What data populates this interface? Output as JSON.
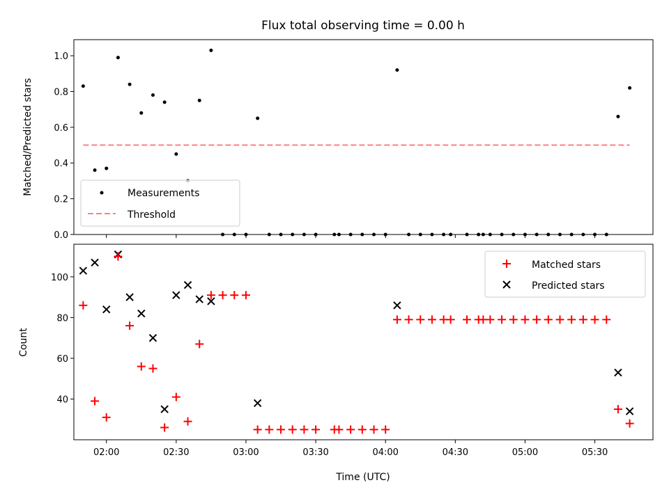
{
  "chart_data": [
    {
      "type": "scatter",
      "title": "Flux total observing time = 0.00 h",
      "xlabel": "",
      "ylabel": "Matched/Predicted stars",
      "xlim": [
        "01:46",
        "05:55"
      ],
      "ylim": [
        0.0,
        1.09
      ],
      "yticks": [
        0.0,
        0.2,
        0.4,
        0.6,
        0.8,
        1.0
      ],
      "ytick_labels": [
        "0.0",
        "0.2",
        "0.4",
        "0.6",
        "0.8",
        "1.0"
      ],
      "grid": false,
      "legend": "lower-left",
      "series": [
        {
          "name": "Measurements",
          "color": "#000000",
          "marker": "dot",
          "points": [
            [
              "01:50",
              0.83
            ],
            [
              "01:55",
              0.36
            ],
            [
              "02:00",
              0.37
            ],
            [
              "02:05",
              0.99
            ],
            [
              "02:10",
              0.84
            ],
            [
              "02:15",
              0.68
            ],
            [
              "02:20",
              0.78
            ],
            [
              "02:25",
              0.74
            ],
            [
              "02:30",
              0.45
            ],
            [
              "02:35",
              0.3
            ],
            [
              "02:40",
              0.75
            ],
            [
              "02:45",
              1.03
            ],
            [
              "02:50",
              0.0
            ],
            [
              "02:55",
              0.0
            ],
            [
              "03:00",
              0.0
            ],
            [
              "03:05",
              0.65
            ],
            [
              "03:10",
              0.0
            ],
            [
              "03:15",
              0.0
            ],
            [
              "03:20",
              0.0
            ],
            [
              "03:25",
              0.0
            ],
            [
              "03:30",
              0.0
            ],
            [
              "03:38",
              0.0
            ],
            [
              "03:40",
              0.0
            ],
            [
              "03:45",
              0.0
            ],
            [
              "03:50",
              0.0
            ],
            [
              "03:55",
              0.0
            ],
            [
              "04:00",
              0.0
            ],
            [
              "04:05",
              0.92
            ],
            [
              "04:10",
              0.0
            ],
            [
              "04:15",
              0.0
            ],
            [
              "04:20",
              0.0
            ],
            [
              "04:25",
              0.0
            ],
            [
              "04:28",
              0.0
            ],
            [
              "04:35",
              0.0
            ],
            [
              "04:40",
              0.0
            ],
            [
              "04:42",
              0.0
            ],
            [
              "04:45",
              0.0
            ],
            [
              "04:50",
              0.0
            ],
            [
              "04:55",
              0.0
            ],
            [
              "05:00",
              0.0
            ],
            [
              "05:05",
              0.0
            ],
            [
              "05:10",
              0.0
            ],
            [
              "05:15",
              0.0
            ],
            [
              "05:20",
              0.0
            ],
            [
              "05:25",
              0.0
            ],
            [
              "05:30",
              0.0
            ],
            [
              "05:35",
              0.0
            ],
            [
              "05:40",
              0.66
            ],
            [
              "05:45",
              0.82
            ]
          ]
        },
        {
          "name": "Threshold",
          "color": "#ff7f7f",
          "line_style": "dashed",
          "points": [
            [
              "01:50",
              0.5
            ],
            [
              "05:45",
              0.5
            ]
          ]
        }
      ]
    },
    {
      "type": "scatter",
      "title": "",
      "xlabel": "Time (UTC)",
      "ylabel": "Count",
      "xlim": [
        "01:46",
        "05:55"
      ],
      "ylim": [
        20,
        116
      ],
      "xticks": [
        "02:00",
        "02:30",
        "03:00",
        "03:30",
        "04:00",
        "04:30",
        "05:00",
        "05:30"
      ],
      "yticks": [
        40,
        60,
        80,
        100
      ],
      "ytick_labels": [
        "40",
        "60",
        "80",
        "100"
      ],
      "grid": false,
      "legend": "top-right",
      "series": [
        {
          "name": "Matched stars",
          "color": "#ff0000",
          "marker": "plus",
          "points": [
            [
              "01:50",
              86
            ],
            [
              "01:55",
              39
            ],
            [
              "02:00",
              31
            ],
            [
              "02:05",
              110
            ],
            [
              "02:10",
              76
            ],
            [
              "02:15",
              56
            ],
            [
              "02:20",
              55
            ],
            [
              "02:25",
              26
            ],
            [
              "02:30",
              41
            ],
            [
              "02:35",
              29
            ],
            [
              "02:40",
              67
            ],
            [
              "02:45",
              91
            ],
            [
              "02:50",
              91
            ],
            [
              "02:55",
              91
            ],
            [
              "03:00",
              91
            ],
            [
              "03:05",
              25
            ],
            [
              "03:10",
              25
            ],
            [
              "03:15",
              25
            ],
            [
              "03:20",
              25
            ],
            [
              "03:25",
              25
            ],
            [
              "03:30",
              25
            ],
            [
              "03:38",
              25
            ],
            [
              "03:40",
              25
            ],
            [
              "03:45",
              25
            ],
            [
              "03:50",
              25
            ],
            [
              "03:55",
              25
            ],
            [
              "04:00",
              25
            ],
            [
              "04:05",
              79
            ],
            [
              "04:10",
              79
            ],
            [
              "04:15",
              79
            ],
            [
              "04:20",
              79
            ],
            [
              "04:25",
              79
            ],
            [
              "04:28",
              79
            ],
            [
              "04:35",
              79
            ],
            [
              "04:40",
              79
            ],
            [
              "04:42",
              79
            ],
            [
              "04:45",
              79
            ],
            [
              "04:50",
              79
            ],
            [
              "04:55",
              79
            ],
            [
              "05:00",
              79
            ],
            [
              "05:05",
              79
            ],
            [
              "05:10",
              79
            ],
            [
              "05:15",
              79
            ],
            [
              "05:20",
              79
            ],
            [
              "05:25",
              79
            ],
            [
              "05:30",
              79
            ],
            [
              "05:35",
              79
            ],
            [
              "05:40",
              35
            ],
            [
              "05:45",
              28
            ]
          ]
        },
        {
          "name": "Predicted stars",
          "color": "#000000",
          "marker": "x",
          "points": [
            [
              "01:50",
              103
            ],
            [
              "01:55",
              107
            ],
            [
              "02:00",
              84
            ],
            [
              "02:05",
              111
            ],
            [
              "02:10",
              90
            ],
            [
              "02:15",
              82
            ],
            [
              "02:20",
              70
            ],
            [
              "02:25",
              35
            ],
            [
              "02:30",
              91
            ],
            [
              "02:35",
              96
            ],
            [
              "02:40",
              89
            ],
            [
              "02:45",
              88
            ],
            [
              "03:05",
              38
            ],
            [
              "04:05",
              86
            ],
            [
              "05:40",
              53
            ],
            [
              "05:45",
              34
            ]
          ]
        }
      ]
    }
  ]
}
